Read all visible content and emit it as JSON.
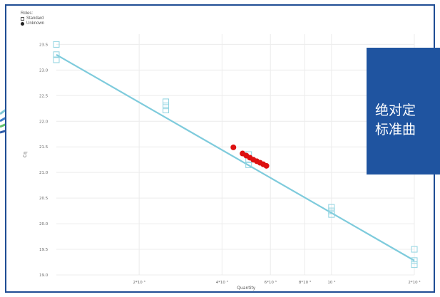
{
  "legend": {
    "title": "Roles:",
    "items": [
      {
        "label": "Standard",
        "marker": "open-square",
        "color": "#8fd3e0"
      },
      {
        "label": "Unknown",
        "marker": "filled-circle",
        "color": "#dd1111"
      }
    ]
  },
  "overlay": {
    "line1": "绝对定",
    "line2": "标准曲"
  },
  "chart_data": {
    "type": "scatter",
    "xlabel": "Quantity",
    "ylabel": "Cq",
    "x_scale": "log",
    "xlim": [
      1000,
      20000
    ],
    "ylim": [
      19.0,
      23.7
    ],
    "x_ticks": [
      {
        "value": 2000,
        "label": "2*10 ³"
      },
      {
        "value": 4000,
        "label": "4*10 ³"
      },
      {
        "value": 6000,
        "label": "6*10 ³"
      },
      {
        "value": 8000,
        "label": "8*10 ³"
      },
      {
        "value": 10000,
        "label": "10 ⁴"
      },
      {
        "value": 20000,
        "label": "2*10 ⁴"
      }
    ],
    "y_ticks": [
      {
        "value": 19.0,
        "label": "19.0"
      },
      {
        "value": 19.5,
        "label": "19.5"
      },
      {
        "value": 20.0,
        "label": "20.0"
      },
      {
        "value": 20.5,
        "label": "20.5"
      },
      {
        "value": 21.0,
        "label": "21.0"
      },
      {
        "value": 21.5,
        "label": "21.5"
      },
      {
        "value": 22.0,
        "label": "22.0"
      },
      {
        "value": 22.5,
        "label": "22.5"
      },
      {
        "value": 23.0,
        "label": "23.0"
      },
      {
        "value": 23.5,
        "label": "23.5"
      }
    ],
    "grid": true,
    "legend_position": "top-left",
    "fit_line": {
      "x": [
        1000,
        20000
      ],
      "y": [
        23.3,
        19.28
      ],
      "color": "#7ecbdc"
    },
    "series": [
      {
        "name": "Standard",
        "marker": "open-square",
        "color": "#8fd3e0",
        "points": [
          {
            "x": 1000,
            "y": 23.5
          },
          {
            "x": 1000,
            "y": 23.3
          },
          {
            "x": 1000,
            "y": 23.2
          },
          {
            "x": 2500,
            "y": 22.38
          },
          {
            "x": 2500,
            "y": 22.3
          },
          {
            "x": 2500,
            "y": 22.22
          },
          {
            "x": 5000,
            "y": 21.35
          },
          {
            "x": 5000,
            "y": 21.25
          },
          {
            "x": 5000,
            "y": 21.15
          },
          {
            "x": 10000,
            "y": 20.32
          },
          {
            "x": 10000,
            "y": 20.25
          },
          {
            "x": 10000,
            "y": 20.18
          },
          {
            "x": 20000,
            "y": 19.5
          },
          {
            "x": 20000,
            "y": 19.28
          },
          {
            "x": 20000,
            "y": 19.2
          }
        ]
      },
      {
        "name": "Unknown",
        "marker": "filled-circle",
        "color": "#dd1111",
        "points": [
          {
            "x": 4400,
            "y": 21.49
          },
          {
            "x": 4750,
            "y": 21.37
          },
          {
            "x": 4900,
            "y": 21.33
          },
          {
            "x": 5050,
            "y": 21.29
          },
          {
            "x": 5200,
            "y": 21.25
          },
          {
            "x": 5350,
            "y": 21.22
          },
          {
            "x": 5500,
            "y": 21.19
          },
          {
            "x": 5650,
            "y": 21.16
          },
          {
            "x": 5800,
            "y": 21.13
          }
        ]
      }
    ]
  }
}
